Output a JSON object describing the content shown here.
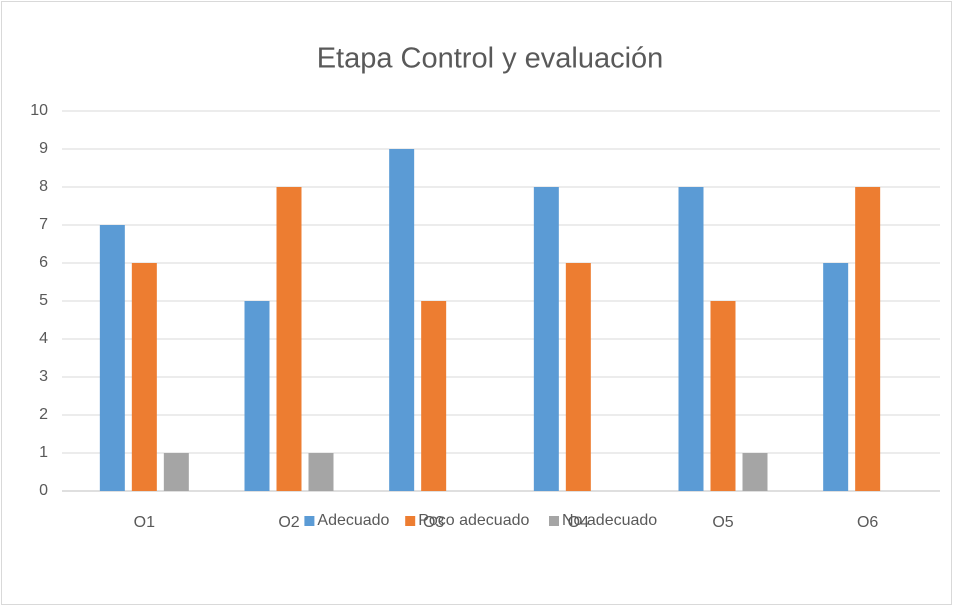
{
  "chart_data": {
    "type": "bar",
    "title": "Etapa Control y evaluación",
    "categories": [
      "O1",
      "O2",
      "O3",
      "O4",
      "O5",
      "O6"
    ],
    "series": [
      {
        "name": "Adecuado",
        "color": "#5b9bd5",
        "values": [
          7,
          5,
          9,
          8,
          8,
          6
        ]
      },
      {
        "name": "Poco adecuado",
        "color": "#ed7d31",
        "values": [
          6,
          8,
          5,
          6,
          5,
          8
        ]
      },
      {
        "name": "No adecuado",
        "color": "#a5a5a5",
        "values": [
          1,
          1,
          0,
          0,
          1,
          0
        ]
      }
    ],
    "ylim": [
      0,
      10
    ],
    "yticks": [
      0,
      1,
      2,
      3,
      4,
      5,
      6,
      7,
      8,
      9,
      10
    ],
    "grid": true,
    "legend": "bottom"
  }
}
